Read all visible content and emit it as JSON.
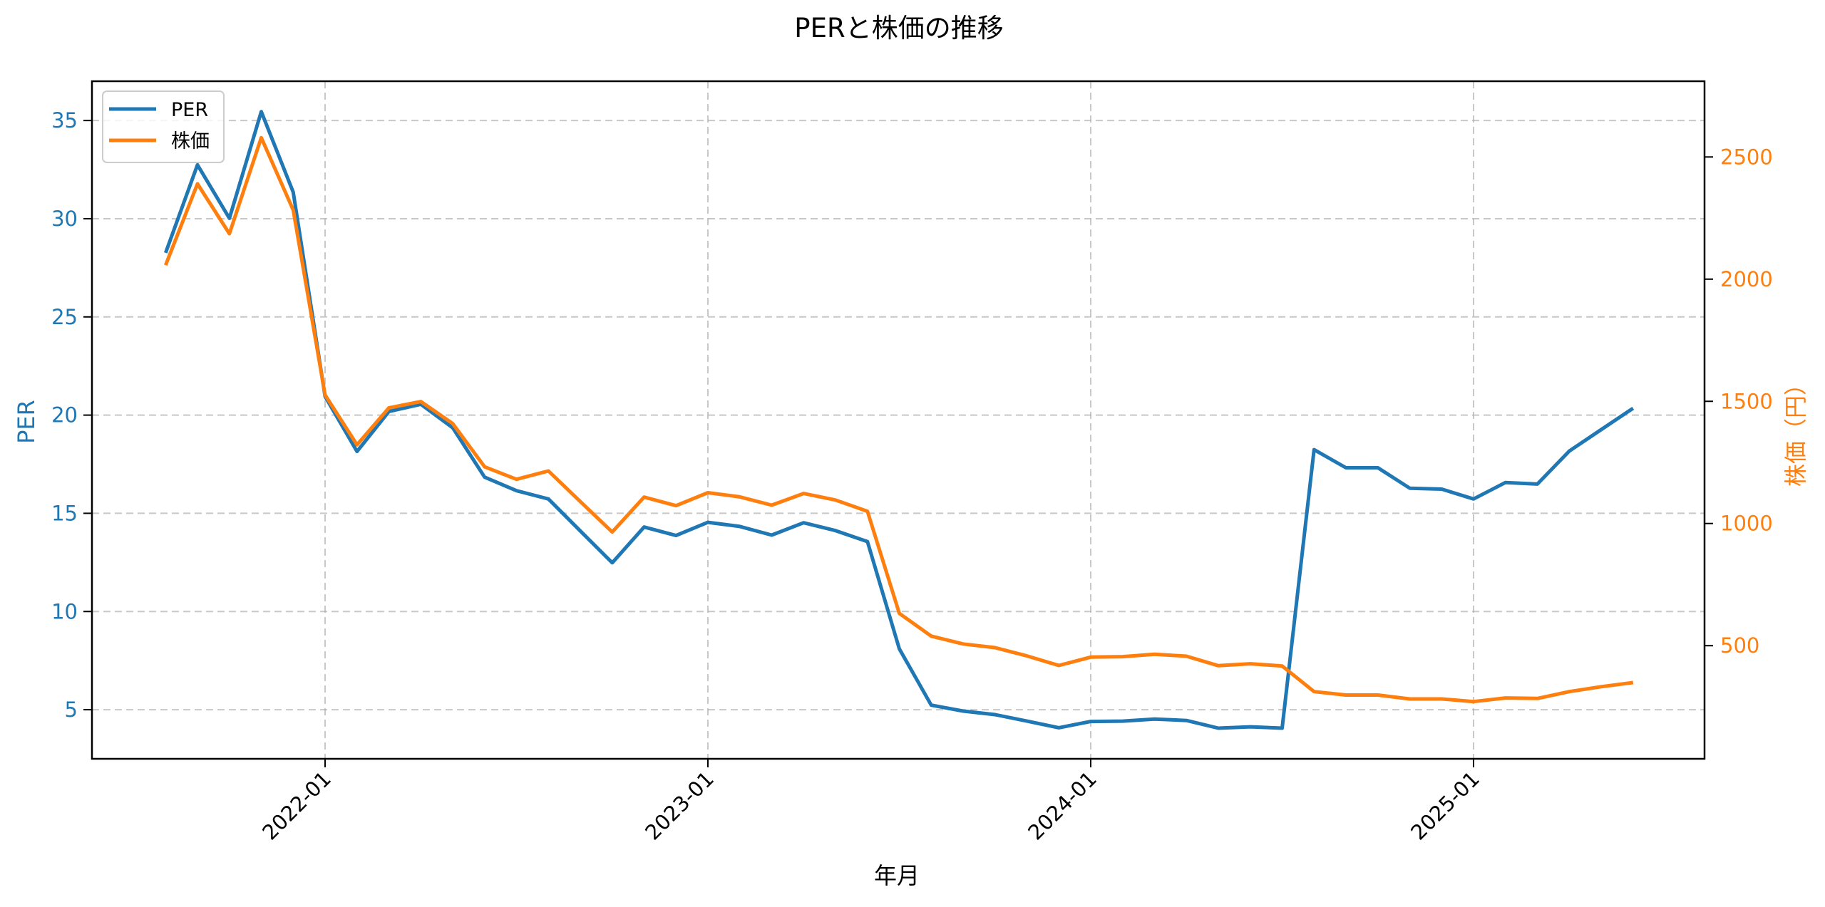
{
  "chart_data": {
    "type": "line",
    "title": "PERと株価の推移",
    "xlabel": "年月",
    "ylabel": "PER",
    "ylabel_right": "株価（円）",
    "x_tick_labels": [
      "2022-01",
      "2023-01",
      "2024-01",
      "2025-01"
    ],
    "y_ticks_left": [
      5,
      10,
      15,
      20,
      25,
      30,
      35
    ],
    "y_ticks_right": [
      500,
      1000,
      1500,
      2000,
      2500
    ],
    "ylim_left": [
      2.5,
      37.0
    ],
    "ylim_right": [
      37,
      2810
    ],
    "grid": true,
    "legend_position": "upper left",
    "x": [
      "2021-08",
      "2021-09",
      "2021-10",
      "2021-11",
      "2021-12",
      "2022-01",
      "2022-02",
      "2022-03",
      "2022-04",
      "2022-05",
      "2022-06",
      "2022-07",
      "2022-08",
      "2022-09",
      "2022-10",
      "2022-11",
      "2022-12",
      "2023-01",
      "2023-02",
      "2023-03",
      "2023-04",
      "2023-05",
      "2023-06",
      "2023-07",
      "2023-08",
      "2023-09",
      "2023-10",
      "2023-11",
      "2023-12",
      "2024-01",
      "2024-02",
      "2024-03",
      "2024-04",
      "2024-05",
      "2024-06",
      "2024-07",
      "2024-08",
      "2024-09",
      "2024-10",
      "2024-11",
      "2024-12",
      "2025-01",
      "2025-02",
      "2025-03",
      "2025-04",
      "2025-05",
      "2025-06"
    ],
    "series": [
      {
        "name": "PER",
        "axis": "left",
        "color": "#1f77b4",
        "values": [
          28.26,
          32.74,
          30.02,
          35.45,
          31.35,
          20.95,
          18.15,
          20.18,
          20.55,
          19.36,
          16.84,
          16.15,
          15.73,
          14.1,
          12.48,
          14.3,
          13.87,
          14.54,
          14.33,
          13.89,
          14.52,
          14.12,
          13.56,
          8.1,
          5.23,
          4.93,
          4.75,
          4.42,
          4.08,
          4.4,
          4.42,
          4.52,
          4.45,
          4.06,
          4.13,
          4.06,
          18.24,
          17.32,
          17.32,
          16.28,
          16.23,
          15.73,
          16.57,
          16.49,
          18.17,
          19.26,
          20.35
        ]
      },
      {
        "name": "株価",
        "axis": "right",
        "color": "#ff7f0e",
        "values": [
          2057,
          2390,
          2186,
          2579,
          2283,
          1526,
          1322,
          1473,
          1499,
          1409,
          1232,
          1181,
          1215,
          1090,
          965,
          1108,
          1073,
          1126,
          1109,
          1075,
          1123,
          1096,
          1050,
          632,
          539,
          507,
          492,
          458,
          419,
          453,
          455,
          465,
          457,
          418,
          426,
          417,
          312,
          298,
          298,
          282,
          282,
          271,
          286,
          284,
          312,
          332,
          349
        ]
      }
    ]
  },
  "legend": {
    "items": [
      {
        "label": "PER",
        "color": "#1f77b4"
      },
      {
        "label": "株価",
        "color": "#ff7f0e"
      }
    ]
  },
  "colors": {
    "left_axis": "#1f77b4",
    "right_axis": "#ff7f0e",
    "grid": "#b0b0b0",
    "spine": "#000000"
  }
}
